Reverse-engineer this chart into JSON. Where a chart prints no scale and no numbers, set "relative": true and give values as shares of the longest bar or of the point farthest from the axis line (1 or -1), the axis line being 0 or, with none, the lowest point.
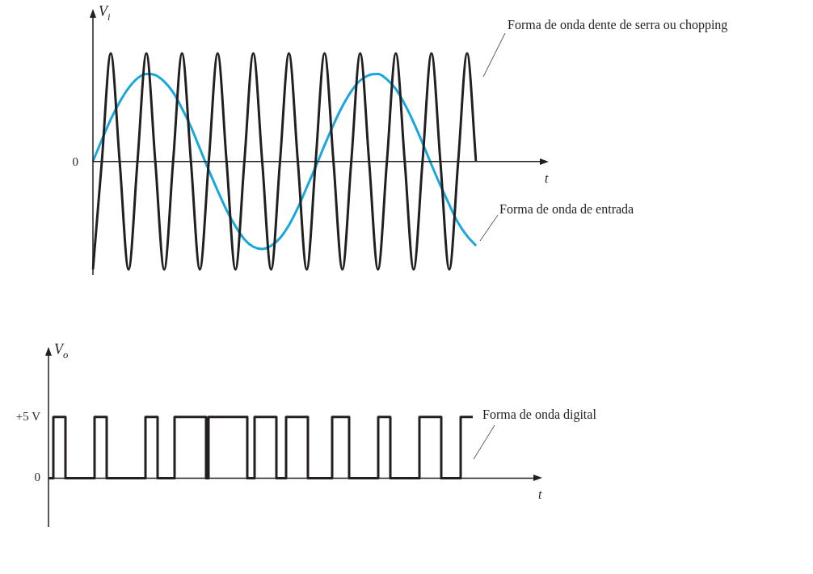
{
  "chart_data": [
    {
      "type": "line",
      "xlabel": "t",
      "ylabel": "V$_{i}$",
      "relative": true,
      "legend": false,
      "marker": "none",
      "line_style": "solid",
      "annotations": [
        "0"
      ],
      "categories": [
        null,
        null,
        null,
        null,
        null,
        null,
        null,
        null,
        null,
        null,
        null,
        null,
        null,
        null,
        null,
        null,
        null,
        null,
        null,
        null,
        null,
        null,
        null,
        null,
        null,
        null,
        null,
        null,
        null,
        null,
        null,
        null,
        null,
        null,
        null,
        null,
        null,
        null,
        null,
        null,
        null,
        null,
        null,
        null
      ],
      "series": [
        {
          "name": "Forma de onda dente de serra ou chopping",
          "color": "#231f20",
          "values": [
            -1,
            0,
            1,
            0,
            -1,
            0,
            1,
            0,
            -1,
            0,
            1,
            0,
            -1,
            0,
            1,
            0,
            -1,
            0,
            1,
            0,
            -1,
            0,
            1,
            0,
            -1,
            0,
            1,
            0,
            -1,
            0,
            1,
            0,
            -1,
            0,
            1,
            0,
            -1,
            0,
            1,
            0,
            -1,
            0,
            1,
            0
          ]
        },
        {
          "name": "Forma de onda de entrada",
          "color": "#1aa7dc",
          "values": [
            0,
            0.2,
            0.39,
            0.55,
            0.68,
            0.77,
            0.81,
            0.8,
            0.74,
            0.64,
            0.49,
            0.32,
            0.12,
            -0.08,
            -0.27,
            -0.45,
            -0.6,
            -0.72,
            -0.79,
            -0.81,
            -0.78,
            -0.71,
            -0.59,
            -0.43,
            -0.24,
            -0.05,
            0.15,
            0.34,
            0.51,
            0.65,
            0.75,
            0.8,
            0.81,
            0.76,
            0.67,
            0.53,
            0.36,
            0.17,
            -0.03,
            -0.22,
            -0.4,
            -0.57,
            -0.69,
            -0.78
          ]
        }
      ]
    },
    {
      "type": "step",
      "xlabel": "t",
      "ylabel": "V$_{o}$",
      "legend": false,
      "marker": "none",
      "line_style": "solid",
      "ylim": [
        -4,
        10
      ],
      "yticks": [
        0,
        {
          "value": 5,
          "label": "+5 V"
        }
      ],
      "categories": [
        null,
        null,
        null,
        null,
        null,
        null,
        null,
        null,
        null,
        null,
        null,
        null,
        null,
        null,
        null,
        null,
        null,
        null,
        null,
        null,
        null,
        null,
        null,
        null,
        null,
        null,
        null,
        null,
        null,
        null,
        null,
        null,
        null,
        null,
        null,
        null,
        null,
        null,
        null,
        null,
        null,
        null,
        null,
        null,
        null,
        null,
        null,
        null,
        null,
        null,
        null,
        null,
        null,
        null,
        null,
        null,
        null,
        null,
        null,
        null,
        null,
        null,
        null,
        null,
        null,
        null,
        null,
        null,
        null,
        null,
        null,
        null,
        null,
        null,
        null,
        null,
        null,
        null,
        null,
        null,
        null,
        null,
        null,
        null,
        null,
        null,
        null,
        null,
        null,
        null,
        null,
        null,
        null,
        null,
        null,
        null,
        null,
        null,
        null,
        null,
        null,
        null,
        null,
        null,
        null,
        null,
        null,
        null,
        null,
        null,
        null,
        null,
        null,
        null,
        null,
        null,
        null,
        null,
        null,
        null,
        null,
        null,
        null,
        null,
        null,
        null,
        null,
        null,
        null,
        null,
        null,
        null,
        null,
        null,
        null,
        null,
        null,
        null,
        null,
        null,
        null,
        null,
        null,
        null,
        null,
        null,
        null,
        null,
        null,
        null,
        null,
        null,
        null,
        null,
        null,
        null,
        null,
        null,
        null,
        null,
        null,
        null,
        null,
        null,
        null,
        null,
        null,
        null,
        null,
        null,
        null,
        null,
        null,
        null,
        null,
        null
      ],
      "series": [
        {
          "name": "Forma de onda digital",
          "color": "#231f20",
          "values": [
            0,
            0,
            0,
            5,
            5,
            5,
            5,
            5,
            0,
            0,
            0,
            0,
            0,
            0,
            0,
            0,
            0,
            0,
            0,
            0,
            5,
            5,
            5,
            5,
            5,
            0,
            0,
            0,
            0,
            0,
            0,
            0,
            0,
            0,
            0,
            0,
            0,
            0,
            0,
            0,
            0,
            5,
            5,
            5,
            5,
            5,
            0,
            0,
            0,
            0,
            0,
            0,
            0,
            5,
            5,
            5,
            5,
            5,
            5,
            5,
            5,
            5,
            5,
            5,
            5,
            5,
            0,
            5,
            5,
            5,
            5,
            5,
            5,
            5,
            5,
            5,
            5,
            5,
            5,
            5,
            5,
            5,
            5,
            0,
            0,
            0,
            5,
            5,
            5,
            5,
            5,
            5,
            5,
            5,
            5,
            0,
            0,
            0,
            0,
            5,
            5,
            5,
            5,
            5,
            5,
            5,
            5,
            5,
            0,
            0,
            0,
            0,
            0,
            0,
            0,
            0,
            0,
            0,
            5,
            5,
            5,
            5,
            5,
            5,
            5,
            0,
            0,
            0,
            0,
            0,
            0,
            0,
            0,
            0,
            0,
            0,
            0,
            5,
            5,
            5,
            5,
            5,
            0,
            0,
            0,
            0,
            0,
            0,
            0,
            0,
            0,
            0,
            0,
            0,
            5,
            5,
            5,
            5,
            5,
            5,
            5,
            5,
            5,
            0,
            0,
            0,
            0,
            0,
            0,
            0,
            0,
            5,
            5,
            5,
            5,
            5
          ]
        }
      ]
    }
  ]
}
